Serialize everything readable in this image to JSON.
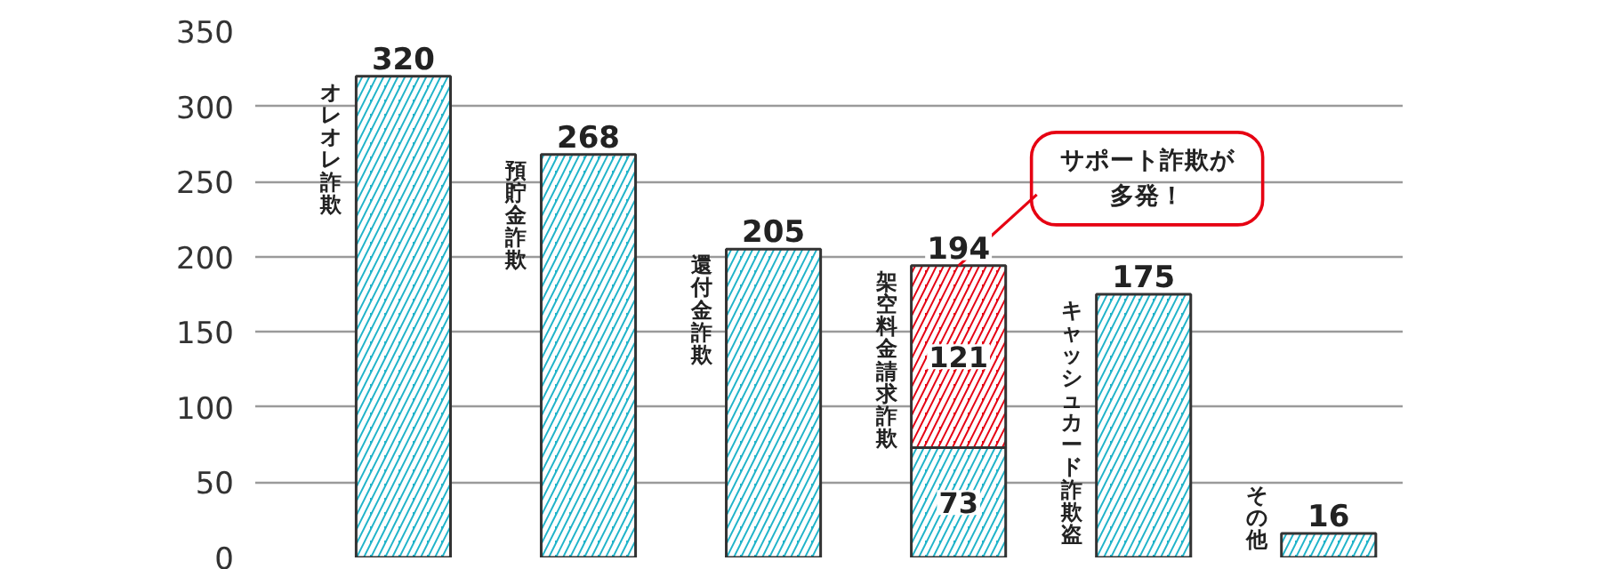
{
  "chart_data": {
    "type": "bar",
    "stacked": true,
    "categories": [
      "オレオレ詐欺",
      "預貯金詐欺",
      "還付金詐欺",
      "架空料金請求詐欺",
      "キャッシュカード詐欺盗",
      "その他"
    ],
    "series": [
      {
        "color": "#1fb3c9",
        "values": [
          320,
          268,
          205,
          73,
          175,
          16
        ],
        "value_labels": [
          null,
          null,
          null,
          "73",
          null,
          null
        ]
      },
      {
        "color": "#e60012",
        "values": [
          null,
          null,
          null,
          121,
          null,
          null
        ],
        "value_labels": [
          null,
          null,
          null,
          "121",
          null,
          null
        ]
      }
    ],
    "totals": [
      "320",
      "268",
      "205",
      "194",
      "175",
      "16"
    ],
    "ylim": [
      0,
      350
    ],
    "yticks": [
      0,
      50,
      100,
      150,
      200,
      250,
      300,
      350
    ],
    "grid": "y",
    "annotations": [
      {
        "text": "サポート詐欺が多発！",
        "x": "架空料金請求詐欺",
        "y": 194
      }
    ]
  }
}
